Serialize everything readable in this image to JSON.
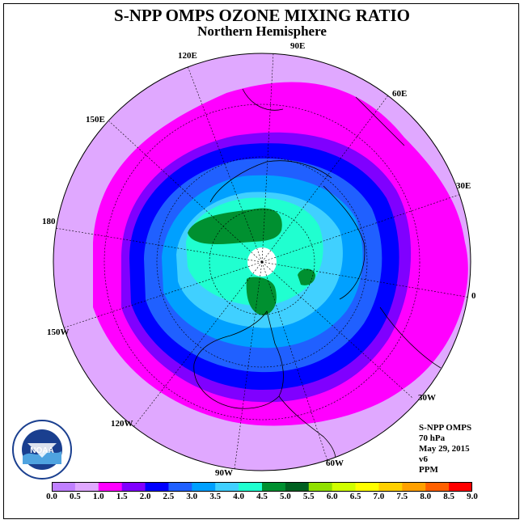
{
  "title": "S-NPP OMPS OZONE MIXING RATIO",
  "subtitle": "Northern Hemisphere",
  "longitude_labels": [
    "90E",
    "60E",
    "30E",
    "0",
    "30W",
    "60W",
    "90W",
    "120W",
    "150W",
    "180",
    "150E",
    "120E"
  ],
  "info": {
    "instrument": "S-NPP OMPS",
    "level": "70 hPa",
    "date": "May 29, 2015",
    "version": "v6",
    "units": "PPM"
  },
  "logo": {
    "text": "NOAA"
  },
  "colorbar": {
    "tick_labels": [
      "0.0",
      "0.5",
      "1.0",
      "1.5",
      "2.0",
      "2.5",
      "3.0",
      "3.5",
      "4.0",
      "4.5",
      "5.0",
      "5.5",
      "6.0",
      "6.5",
      "7.0",
      "7.5",
      "8.0",
      "8.5",
      "9.0"
    ],
    "colors": [
      "#c080ff",
      "#e0a8ff",
      "#ff00ff",
      "#8000ff",
      "#0000ff",
      "#2060ff",
      "#00a0ff",
      "#40d0ff",
      "#20ffd0",
      "#009030",
      "#006020",
      "#90e000",
      "#d0ff00",
      "#ffff00",
      "#ffd000",
      "#ffa000",
      "#ff6000",
      "#ff0000",
      "#905040"
    ]
  }
}
